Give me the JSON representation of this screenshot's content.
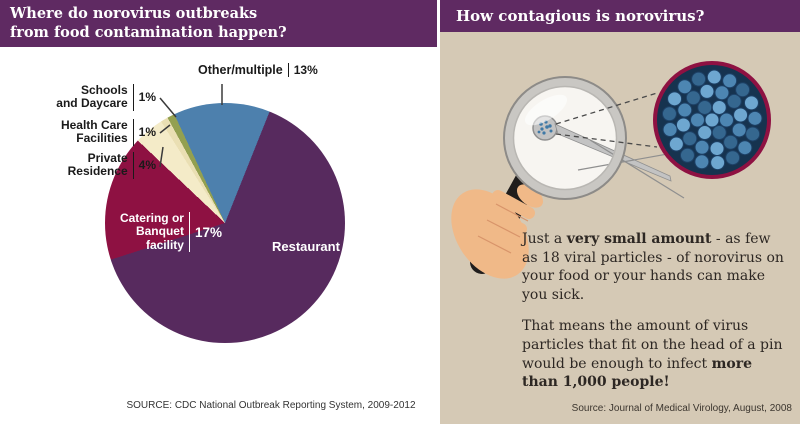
{
  "colors": {
    "header_purple": "#5f2a62",
    "left_bg": "#ffffff",
    "right_bg": "#d5c9b5",
    "text_dark": "#2d2723",
    "leader_line": "#3a3a3a",
    "zoom_border": "#8e1142",
    "virus_bg": "#16334f",
    "virus_particle_light": "#6ea7d0",
    "virus_particle_mid": "#4d86b2",
    "virus_particle_dark": "#35678f",
    "hand": "#f0b988",
    "hand_shade": "#d8946a",
    "handle": "#201d1c",
    "lens_ring": "#c9c7c3",
    "lens_ring_edge": "#8d8b88",
    "lens_glass": "#f7f5f1",
    "pin_gray": "#c3c3c3",
    "pin_edge": "#8f8f8f"
  },
  "left_panel": {
    "header": {
      "line1": "Where do norovirus outbreaks",
      "line2": "from food contamination happen?"
    },
    "source": "SOURCE: CDC National Outbreak Reporting System, 2009-2012"
  },
  "right_panel": {
    "header": "How contagious is norovirus?",
    "para1": {
      "s0": "Just a ",
      "s1": "very small amount",
      "s2": " - as few as 18 viral particles - of norovirus on your food or your hands can make you sick."
    },
    "para2": {
      "s0": "That means the amount of virus particles that fit on the head of a pin would be enough to infect ",
      "s1": "more than 1,000 people!"
    },
    "source": "Source: Journal of Medical Virology, August, 2008"
  },
  "chart_data": {
    "type": "pie",
    "title": "Where do norovirus outbreaks from food contamination happen?",
    "source": "SOURCE: CDC National Outbreak Reporting System, 2009-2012",
    "start_angle_deg": -25,
    "legend_position": "callout-labels",
    "segments": [
      {
        "label": "Other/multiple",
        "value": 13,
        "pct": "13%",
        "color": "#4d80ad",
        "display": [
          "Other/multiple"
        ]
      },
      {
        "label": "Restaurant",
        "value": 64,
        "pct": "64%",
        "color": "#572a5e",
        "display": [
          "Restaurant"
        ]
      },
      {
        "label": "Catering or Banquet facility",
        "value": 17,
        "pct": "17%",
        "color": "#8e1142",
        "display": [
          "Catering or",
          "Banquet",
          "facility"
        ]
      },
      {
        "label": "Private Residence",
        "value": 4,
        "pct": "4%",
        "color": "#f4ebc8",
        "display": [
          "Private",
          "Residence"
        ]
      },
      {
        "label": "Health Care Facilities",
        "value": 1,
        "pct": "1%",
        "color": "#eadfb3",
        "display": [
          "Health Care",
          "Facilities"
        ]
      },
      {
        "label": "Schools and Daycare",
        "value": 1,
        "pct": "1%",
        "color": "#93a050",
        "display": [
          "Schools",
          "and Daycare"
        ]
      }
    ]
  }
}
